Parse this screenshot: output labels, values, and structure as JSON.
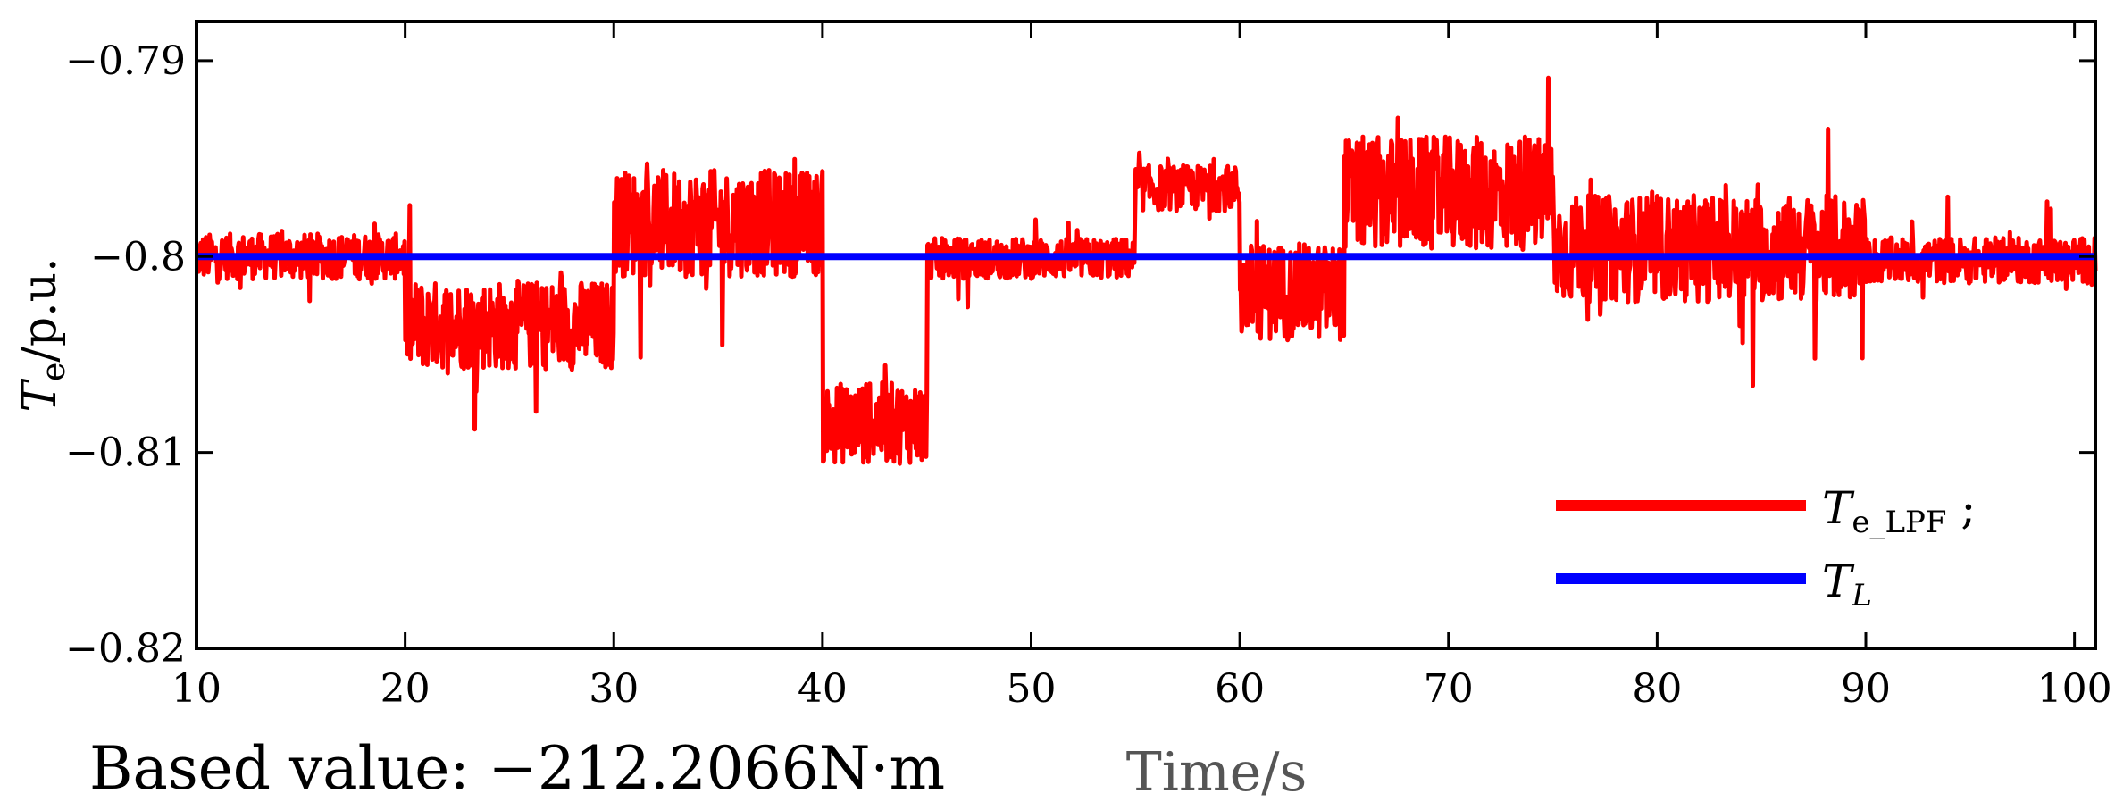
{
  "chart_data": {
    "type": "line",
    "xlabel": "Time/s",
    "ylabel_main": "T",
    "ylabel_sub": "e",
    "ylabel_unit": "/p.u.",
    "xlim": [
      10,
      101
    ],
    "ylim": [
      -0.82,
      -0.788
    ],
    "x_ticks": [
      10,
      20,
      30,
      40,
      50,
      60,
      70,
      80,
      90,
      100
    ],
    "x_tick_labels": [
      "10",
      "20",
      "30",
      "40",
      "50",
      "60",
      "70",
      "80",
      "90",
      "100"
    ],
    "y_ticks": [
      -0.79,
      -0.8,
      -0.81,
      -0.82
    ],
    "y_tick_labels": [
      "−0.79",
      "−0.8",
      "−0.81",
      "−0.82"
    ],
    "grid": false,
    "legend_position": "bottom-right",
    "series": [
      {
        "legend_main": "T",
        "legend_sub": "e_LPF",
        "legend_suffix": " ;",
        "color": "#ff0000",
        "style": "noisy",
        "segments": [
          {
            "t0": 10,
            "t1": 20,
            "mean": -0.8,
            "amp": 0.0018
          },
          {
            "t0": 20,
            "t1": 30,
            "mean": -0.8035,
            "amp": 0.0035
          },
          {
            "t0": 30,
            "t1": 40,
            "mean": -0.7983,
            "amp": 0.0042
          },
          {
            "t0": 40,
            "t1": 45,
            "mean": -0.8085,
            "amp": 0.0032
          },
          {
            "t0": 45,
            "t1": 55,
            "mean": -0.8001,
            "amp": 0.0016
          },
          {
            "t0": 55,
            "t1": 60,
            "mean": -0.7965,
            "amp": 0.0018
          },
          {
            "t0": 60,
            "t1": 65,
            "mean": -0.8018,
            "amp": 0.0038
          },
          {
            "t0": 65,
            "t1": 75,
            "mean": -0.7968,
            "amp": 0.0045
          },
          {
            "t0": 75,
            "t1": 90,
            "mean": -0.7996,
            "amp": 0.0042
          },
          {
            "t0": 90,
            "t1": 101,
            "mean": -0.8002,
            "amp": 0.0018
          }
        ]
      },
      {
        "legend_main": "T",
        "legend_sub": "L",
        "legend_suffix": "",
        "color": "#0000ff",
        "style": "constant",
        "x": [
          10,
          101
        ],
        "y": [
          -0.8,
          -0.8
        ]
      }
    ]
  },
  "note": "Based value: −212.2066N·m"
}
